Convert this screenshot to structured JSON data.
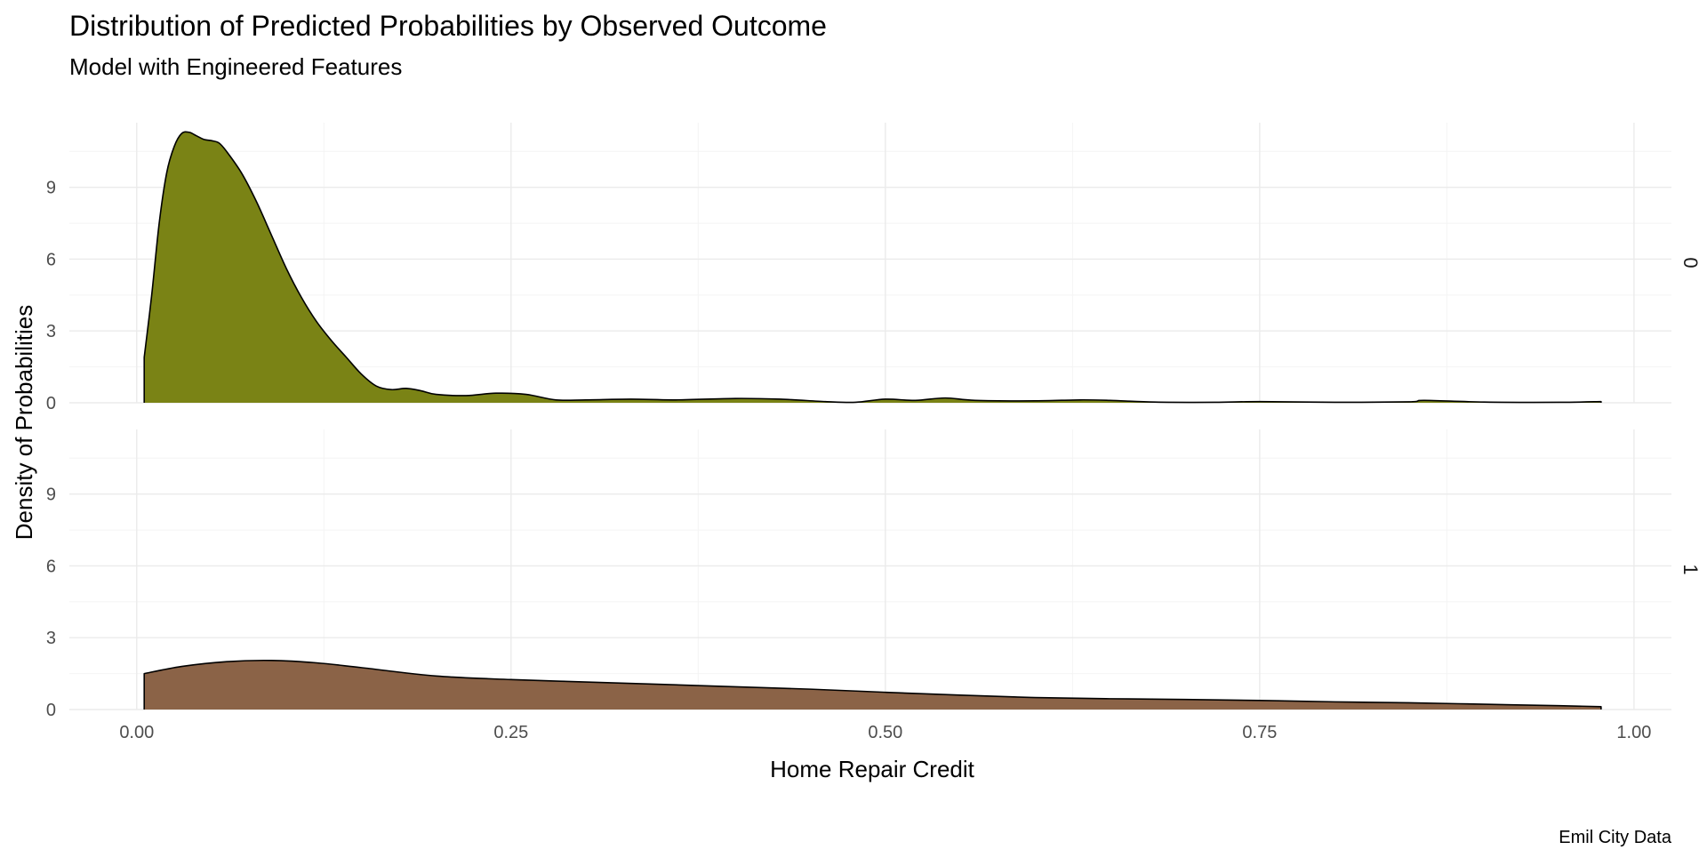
{
  "chart_data": {
    "type": "area",
    "title": "Distribution of Predicted Probabilities by Observed Outcome",
    "subtitle": "Model with Engineered Features",
    "xlabel": "Home Repair Credit",
    "ylabel": "Density of Probabilities",
    "caption": "Emil City Data",
    "xlim": [
      -0.045,
      1.025
    ],
    "ylim": [
      0,
      11.7
    ],
    "x_ticks": [
      0,
      0.25,
      0.5,
      0.75,
      1.0
    ],
    "x_tick_labels": [
      "0.00",
      "0.25",
      "0.50",
      "0.75",
      "1.00"
    ],
    "y_ticks": [
      0,
      3,
      6,
      9
    ],
    "y_tick_labels": [
      "0",
      "3",
      "6",
      "9"
    ],
    "grid": true,
    "legend": "none",
    "facets": [
      {
        "label": "0",
        "color": "#7a8315",
        "x": [
          0.005,
          0.01,
          0.015,
          0.02,
          0.025,
          0.03,
          0.035,
          0.04,
          0.045,
          0.05,
          0.055,
          0.06,
          0.07,
          0.08,
          0.09,
          0.1,
          0.11,
          0.12,
          0.13,
          0.14,
          0.15,
          0.16,
          0.17,
          0.18,
          0.19,
          0.2,
          0.22,
          0.24,
          0.26,
          0.28,
          0.3,
          0.33,
          0.36,
          0.4,
          0.43,
          0.46,
          0.48,
          0.5,
          0.52,
          0.54,
          0.56,
          0.6,
          0.63,
          0.65,
          0.68,
          0.72,
          0.75,
          0.8,
          0.85,
          0.86,
          0.9,
          0.95,
          0.978
        ],
        "y": [
          1.9,
          4.5,
          7.5,
          9.6,
          10.7,
          11.25,
          11.3,
          11.15,
          11.0,
          10.95,
          10.85,
          10.5,
          9.6,
          8.4,
          7.0,
          5.6,
          4.4,
          3.4,
          2.6,
          1.9,
          1.2,
          0.7,
          0.55,
          0.6,
          0.5,
          0.35,
          0.3,
          0.4,
          0.35,
          0.12,
          0.12,
          0.15,
          0.12,
          0.18,
          0.15,
          0.05,
          0.02,
          0.15,
          0.1,
          0.2,
          0.1,
          0.08,
          0.12,
          0.1,
          0.03,
          0.02,
          0.05,
          0.02,
          0.04,
          0.1,
          0.03,
          0.02,
          0.05
        ]
      },
      {
        "label": "1",
        "color": "#8b6347",
        "x": [
          0.005,
          0.03,
          0.06,
          0.09,
          0.12,
          0.15,
          0.2,
          0.25,
          0.3,
          0.35,
          0.4,
          0.45,
          0.5,
          0.55,
          0.6,
          0.65,
          0.7,
          0.75,
          0.8,
          0.85,
          0.9,
          0.95,
          0.978
        ],
        "y": [
          1.5,
          1.8,
          2.0,
          2.05,
          1.95,
          1.75,
          1.4,
          1.25,
          1.15,
          1.05,
          0.95,
          0.85,
          0.72,
          0.6,
          0.5,
          0.45,
          0.42,
          0.38,
          0.32,
          0.28,
          0.22,
          0.16,
          0.12
        ]
      }
    ]
  }
}
